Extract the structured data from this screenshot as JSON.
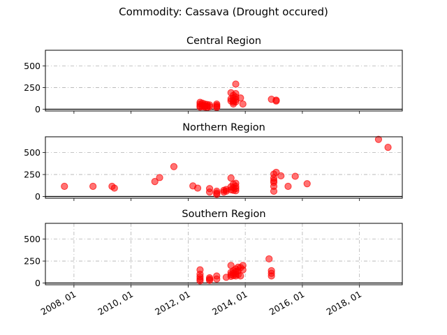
{
  "chart_data": {
    "type": "scatter",
    "title": "Commodity: Cassava (Drought occured)",
    "marker_color": "#ff0000",
    "x_axis": {
      "tick_labels": [
        "2008, 01",
        "2010, 01",
        "2012, 01",
        "2014, 01",
        "2016, 01",
        "2018, 01"
      ],
      "range": [
        "2007-01",
        "2019-07"
      ]
    },
    "y_axis": {
      "ticks": [
        0,
        250,
        500
      ],
      "range": [
        -20,
        680
      ]
    },
    "panels": [
      {
        "title": "Central Region",
        "grid": {
          "x": false,
          "y": true
        },
        "points": [
          {
            "x": "2012-06",
            "y": 80
          },
          {
            "x": "2012-06",
            "y": 60
          },
          {
            "x": "2012-06",
            "y": 40
          },
          {
            "x": "2012-06",
            "y": 25
          },
          {
            "x": "2012-07",
            "y": 70
          },
          {
            "x": "2012-07",
            "y": 50
          },
          {
            "x": "2012-07",
            "y": 30
          },
          {
            "x": "2012-08",
            "y": 60
          },
          {
            "x": "2012-08",
            "y": 40
          },
          {
            "x": "2012-08",
            "y": 25
          },
          {
            "x": "2012-09",
            "y": 55
          },
          {
            "x": "2012-09",
            "y": 35
          },
          {
            "x": "2012-09",
            "y": 20
          },
          {
            "x": "2012-10",
            "y": 50
          },
          {
            "x": "2012-10",
            "y": 30
          },
          {
            "x": "2013-01",
            "y": 60
          },
          {
            "x": "2013-01",
            "y": 45
          },
          {
            "x": "2013-01",
            "y": 30
          },
          {
            "x": "2013-01",
            "y": 20
          },
          {
            "x": "2013-07",
            "y": 190
          },
          {
            "x": "2013-07",
            "y": 120
          },
          {
            "x": "2013-07",
            "y": 95
          },
          {
            "x": "2013-08",
            "y": 160
          },
          {
            "x": "2013-08",
            "y": 130
          },
          {
            "x": "2013-08",
            "y": 100
          },
          {
            "x": "2013-08",
            "y": 80
          },
          {
            "x": "2013-08",
            "y": 60
          },
          {
            "x": "2013-09",
            "y": 290
          },
          {
            "x": "2013-09",
            "y": 180
          },
          {
            "x": "2013-09",
            "y": 140
          },
          {
            "x": "2013-09",
            "y": 110
          },
          {
            "x": "2013-09",
            "y": 85
          },
          {
            "x": "2013-11",
            "y": 130
          },
          {
            "x": "2013-12",
            "y": 60
          },
          {
            "x": "2014-12",
            "y": 115
          },
          {
            "x": "2015-02",
            "y": 105
          },
          {
            "x": "2015-02",
            "y": 95
          }
        ]
      },
      {
        "title": "Northern Region",
        "grid": {
          "x": false,
          "y": true
        },
        "points": [
          {
            "x": "2007-09",
            "y": 115
          },
          {
            "x": "2008-09",
            "y": 115
          },
          {
            "x": "2009-05",
            "y": 115
          },
          {
            "x": "2009-06",
            "y": 95
          },
          {
            "x": "2010-11",
            "y": 170
          },
          {
            "x": "2011-01",
            "y": 215
          },
          {
            "x": "2011-07",
            "y": 340
          },
          {
            "x": "2012-03",
            "y": 120
          },
          {
            "x": "2012-05",
            "y": 95
          },
          {
            "x": "2012-10",
            "y": 90
          },
          {
            "x": "2012-10",
            "y": 50
          },
          {
            "x": "2013-01",
            "y": 60
          },
          {
            "x": "2013-01",
            "y": 40
          },
          {
            "x": "2013-01",
            "y": 25
          },
          {
            "x": "2013-04",
            "y": 70
          },
          {
            "x": "2013-04",
            "y": 50
          },
          {
            "x": "2013-05",
            "y": 80
          },
          {
            "x": "2013-05",
            "y": 60
          },
          {
            "x": "2013-07",
            "y": 210
          },
          {
            "x": "2013-07",
            "y": 110
          },
          {
            "x": "2013-07",
            "y": 75
          },
          {
            "x": "2013-08",
            "y": 140
          },
          {
            "x": "2013-08",
            "y": 100
          },
          {
            "x": "2013-08",
            "y": 70
          },
          {
            "x": "2013-09",
            "y": 150
          },
          {
            "x": "2013-09",
            "y": 115
          },
          {
            "x": "2013-09",
            "y": 90
          },
          {
            "x": "2013-09",
            "y": 65
          },
          {
            "x": "2015-01",
            "y": 255
          },
          {
            "x": "2015-01",
            "y": 210
          },
          {
            "x": "2015-01",
            "y": 180
          },
          {
            "x": "2015-01",
            "y": 160
          },
          {
            "x": "2015-01",
            "y": 115
          },
          {
            "x": "2015-01",
            "y": 60
          },
          {
            "x": "2015-02",
            "y": 275
          },
          {
            "x": "2015-04",
            "y": 235
          },
          {
            "x": "2015-07",
            "y": 115
          },
          {
            "x": "2015-10",
            "y": 230
          },
          {
            "x": "2016-03",
            "y": 145
          },
          {
            "x": "2018-09",
            "y": 650
          },
          {
            "x": "2019-01",
            "y": 560
          }
        ]
      },
      {
        "title": "Southern Region",
        "grid": {
          "x": true,
          "y": true
        },
        "points": [
          {
            "x": "2012-06",
            "y": 150
          },
          {
            "x": "2012-06",
            "y": 100
          },
          {
            "x": "2012-06",
            "y": 70
          },
          {
            "x": "2012-06",
            "y": 45
          },
          {
            "x": "2012-06",
            "y": 25
          },
          {
            "x": "2012-10",
            "y": 60
          },
          {
            "x": "2012-10",
            "y": 45
          },
          {
            "x": "2012-10",
            "y": 30
          },
          {
            "x": "2013-01",
            "y": 80
          },
          {
            "x": "2013-01",
            "y": 45
          },
          {
            "x": "2013-05",
            "y": 65
          },
          {
            "x": "2013-07",
            "y": 200
          },
          {
            "x": "2013-07",
            "y": 120
          },
          {
            "x": "2013-07",
            "y": 95
          },
          {
            "x": "2013-07",
            "y": 75
          },
          {
            "x": "2013-08",
            "y": 140
          },
          {
            "x": "2013-08",
            "y": 110
          },
          {
            "x": "2013-08",
            "y": 85
          },
          {
            "x": "2013-09",
            "y": 160
          },
          {
            "x": "2013-09",
            "y": 130
          },
          {
            "x": "2013-09",
            "y": 100
          },
          {
            "x": "2013-09",
            "y": 80
          },
          {
            "x": "2013-10",
            "y": 180
          },
          {
            "x": "2013-10",
            "y": 140
          },
          {
            "x": "2013-10",
            "y": 95
          },
          {
            "x": "2013-11",
            "y": 175
          },
          {
            "x": "2013-11",
            "y": 80
          },
          {
            "x": "2013-12",
            "y": 200
          },
          {
            "x": "2013-12",
            "y": 150
          },
          {
            "x": "2014-11",
            "y": 275
          },
          {
            "x": "2014-12",
            "y": 140
          },
          {
            "x": "2014-12",
            "y": 110
          },
          {
            "x": "2014-12",
            "y": 80
          }
        ]
      }
    ]
  }
}
